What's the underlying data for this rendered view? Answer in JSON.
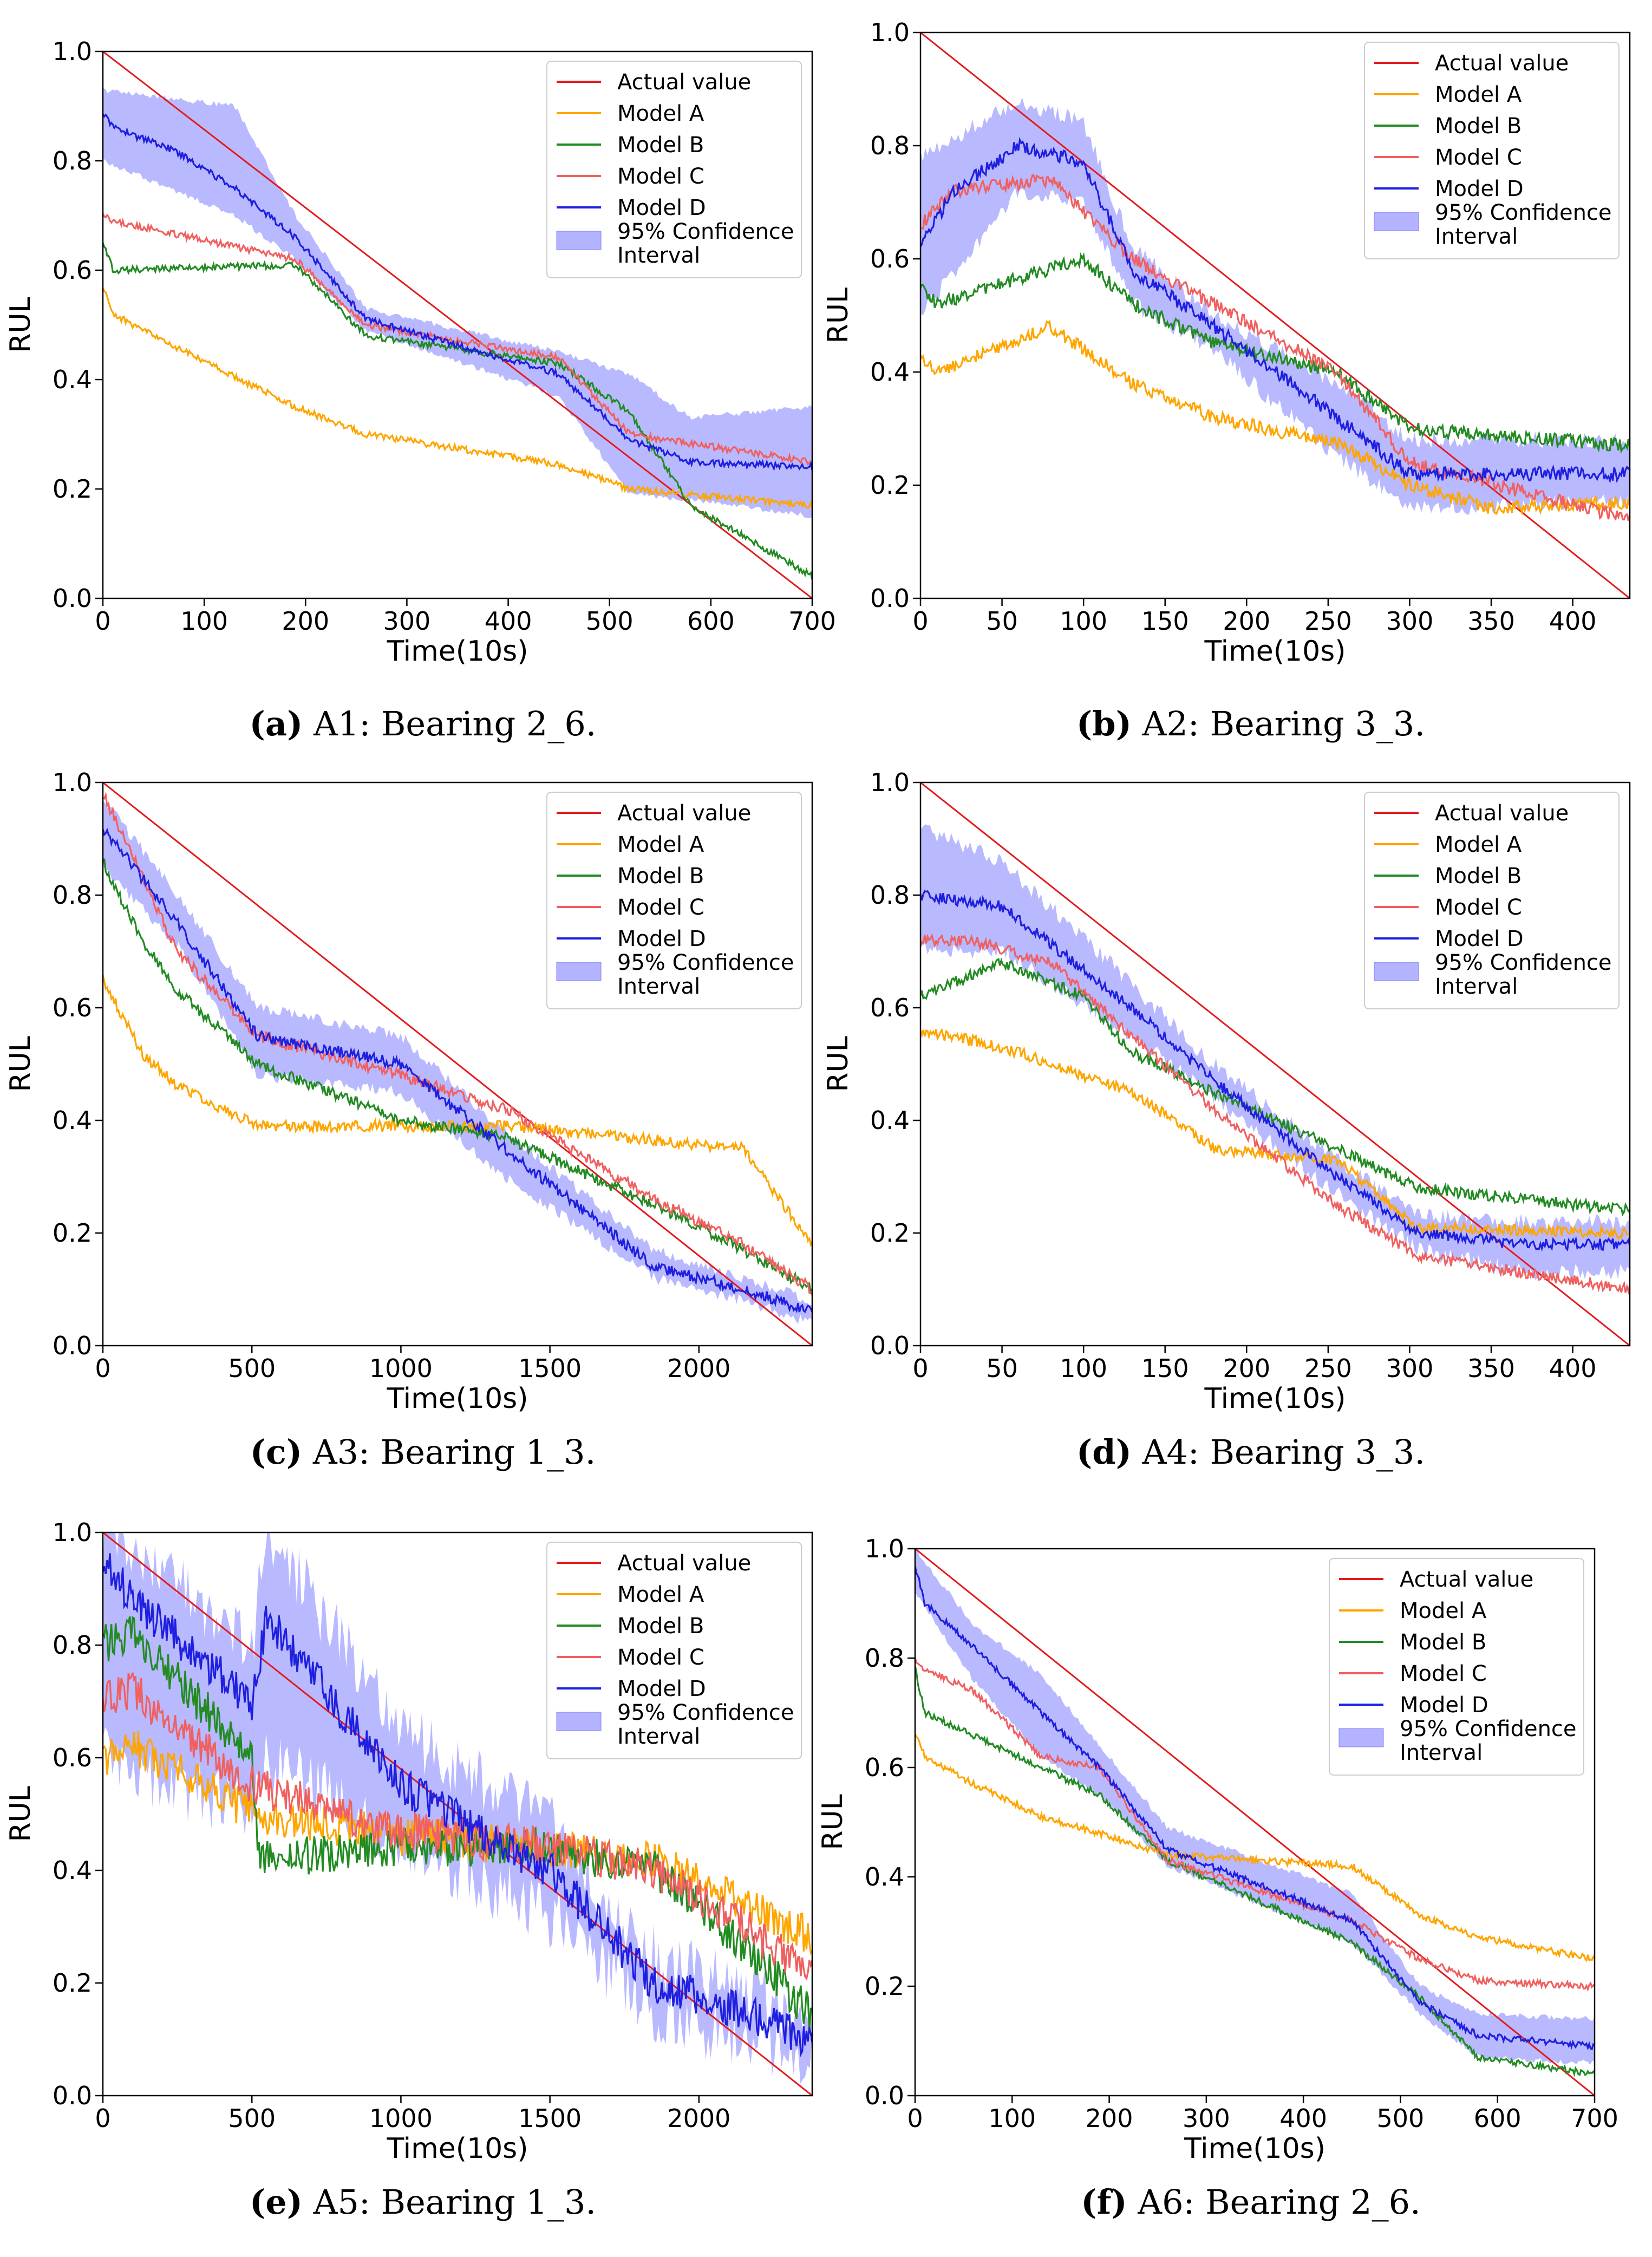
{
  "figure": {
    "legend": [
      "Actual value",
      "Model A",
      "Model B",
      "Model C",
      "Model D",
      "95% Confidence Interval"
    ],
    "legend_ci_lines": [
      "95% Confidence",
      "Interval"
    ],
    "colors": {
      "actual": "#e31a1c",
      "modelA": "#ffa500",
      "modelB": "#228b22",
      "modelC": "#f06060",
      "modelD": "#1f1fe0",
      "ci": "#8080ff"
    }
  },
  "chart_data": [
    {
      "id": "a",
      "type": "line",
      "title": "",
      "caption_letter": "(a)",
      "caption_text": " A1: Bearing 2_6.",
      "xlabel": "Time(10s)",
      "ylabel": "RUL",
      "xlim": [
        0,
        700
      ],
      "ylim": [
        0,
        1
      ],
      "xticks": [
        0,
        100,
        200,
        300,
        400,
        500,
        600,
        700
      ],
      "yticks": [
        "0.0",
        "0.2",
        "0.4",
        "0.6",
        "0.8",
        "1.0"
      ],
      "legend_loc": "upper right",
      "noise": 0.006,
      "ci_noise": 0.01,
      "series": [
        {
          "name": "Actual value",
          "x": [
            0,
            700
          ],
          "y": [
            1.0,
            0.0
          ]
        },
        {
          "name": "Model A",
          "x": [
            0,
            10,
            60,
            190,
            260,
            450,
            520,
            700
          ],
          "y": [
            0.57,
            0.52,
            0.47,
            0.35,
            0.3,
            0.245,
            0.2,
            0.17
          ]
        },
        {
          "name": "Model B",
          "x": [
            0,
            10,
            190,
            260,
            450,
            520,
            580,
            700
          ],
          "y": [
            0.65,
            0.6,
            0.61,
            0.48,
            0.43,
            0.34,
            0.17,
            0.04
          ]
        },
        {
          "name": "Model C",
          "x": [
            0,
            10,
            190,
            260,
            450,
            520,
            700
          ],
          "y": [
            0.7,
            0.69,
            0.62,
            0.5,
            0.44,
            0.3,
            0.25
          ]
        },
        {
          "name": "Model D",
          "x": [
            0,
            10,
            70,
            130,
            190,
            260,
            450,
            520,
            580,
            700
          ],
          "y": [
            0.89,
            0.86,
            0.82,
            0.75,
            0.66,
            0.51,
            0.41,
            0.29,
            0.25,
            0.24
          ]
        }
      ],
      "ci": {
        "x": [
          0,
          130,
          190,
          260,
          450,
          520,
          580,
          700
        ],
        "lower": [
          0.8,
          0.7,
          0.62,
          0.49,
          0.37,
          0.19,
          0.18,
          0.15
        ],
        "upper": [
          0.93,
          0.9,
          0.7,
          0.53,
          0.45,
          0.41,
          0.33,
          0.35
        ]
      }
    },
    {
      "id": "b",
      "type": "line",
      "title": "",
      "caption_letter": "(b)",
      "caption_text": " A2: Bearing 3_3.",
      "xlabel": "Time(10s)",
      "ylabel": "RUL",
      "xlim": [
        0,
        435
      ],
      "ylim": [
        0,
        1
      ],
      "xticks": [
        0,
        50,
        100,
        150,
        200,
        250,
        300,
        350,
        400
      ],
      "yticks": [
        "0.0",
        "0.2",
        "0.4",
        "0.6",
        "0.8",
        "1.0"
      ],
      "legend_loc": "upper right",
      "noise": 0.012,
      "ci_noise": 0.03,
      "series": [
        {
          "name": "Actual value",
          "x": [
            0,
            435
          ],
          "y": [
            1.0,
            0.0
          ]
        },
        {
          "name": "Model A",
          "x": [
            0,
            10,
            80,
            130,
            180,
            260,
            300,
            350,
            435
          ],
          "y": [
            0.43,
            0.4,
            0.48,
            0.38,
            0.32,
            0.27,
            0.2,
            0.16,
            0.17
          ]
        },
        {
          "name": "Model B",
          "x": [
            0,
            10,
            100,
            130,
            180,
            255,
            300,
            435
          ],
          "y": [
            0.55,
            0.52,
            0.6,
            0.52,
            0.45,
            0.4,
            0.3,
            0.27
          ]
        },
        {
          "name": "Model C",
          "x": [
            0,
            20,
            80,
            130,
            180,
            255,
            300,
            435
          ],
          "y": [
            0.66,
            0.72,
            0.74,
            0.6,
            0.52,
            0.4,
            0.24,
            0.14
          ]
        },
        {
          "name": "Model D",
          "x": [
            0,
            20,
            60,
            100,
            130,
            180,
            255,
            300,
            435
          ],
          "y": [
            0.62,
            0.72,
            0.8,
            0.77,
            0.58,
            0.48,
            0.32,
            0.22,
            0.22
          ]
        }
      ],
      "ci": {
        "x": [
          0,
          60,
          100,
          130,
          180,
          255,
          300,
          435
        ],
        "lower": [
          0.5,
          0.72,
          0.7,
          0.52,
          0.44,
          0.25,
          0.16,
          0.17
        ],
        "upper": [
          0.78,
          0.88,
          0.84,
          0.62,
          0.5,
          0.38,
          0.28,
          0.28
        ]
      }
    },
    {
      "id": "c",
      "type": "line",
      "title": "",
      "caption_letter": "(c)",
      "caption_text": " A3: Bearing 1_3.",
      "xlabel": "Time(10s)",
      "ylabel": "RUL",
      "xlim": [
        0,
        2380
      ],
      "ylim": [
        0,
        1
      ],
      "xticks": [
        0,
        500,
        1000,
        1500,
        2000
      ],
      "yticks": [
        "0.0",
        "0.2",
        "0.4",
        "0.6",
        "0.8",
        "1.0"
      ],
      "legend_loc": "upper right",
      "noise": 0.01,
      "ci_noise": 0.02,
      "series": [
        {
          "name": "Actual value",
          "x": [
            0,
            2380
          ],
          "y": [
            1.0,
            0.0
          ]
        },
        {
          "name": "Model A",
          "x": [
            0,
            130,
            250,
            520,
            1000,
            1350,
            2150,
            2380
          ],
          "y": [
            0.65,
            0.52,
            0.46,
            0.39,
            0.39,
            0.39,
            0.35,
            0.18
          ]
        },
        {
          "name": "Model B",
          "x": [
            0,
            130,
            250,
            520,
            1000,
            1350,
            1850,
            2150,
            2380
          ],
          "y": [
            0.86,
            0.72,
            0.63,
            0.5,
            0.4,
            0.37,
            0.25,
            0.17,
            0.1
          ]
        },
        {
          "name": "Model C",
          "x": [
            0,
            250,
            520,
            1000,
            1350,
            1850,
            2150,
            2380
          ],
          "y": [
            0.98,
            0.7,
            0.55,
            0.48,
            0.42,
            0.26,
            0.18,
            0.1
          ]
        },
        {
          "name": "Model D",
          "x": [
            0,
            250,
            520,
            1000,
            1350,
            1850,
            2150,
            2380
          ],
          "y": [
            0.92,
            0.75,
            0.55,
            0.5,
            0.35,
            0.14,
            0.1,
            0.06
          ]
        }
      ],
      "ci": {
        "x": [
          0,
          250,
          520,
          1000,
          1350,
          1850,
          2150,
          2380
        ],
        "lower": [
          0.85,
          0.71,
          0.48,
          0.45,
          0.3,
          0.12,
          0.08,
          0.04
        ],
        "upper": [
          0.97,
          0.8,
          0.6,
          0.55,
          0.38,
          0.17,
          0.12,
          0.08
        ]
      }
    },
    {
      "id": "d",
      "type": "line",
      "title": "",
      "caption_letter": "(d)",
      "caption_text": " A4: Bearing 3_3.",
      "xlabel": "Time(10s)",
      "ylabel": "RUL",
      "xlim": [
        0,
        435
      ],
      "ylim": [
        0,
        1
      ],
      "xticks": [
        0,
        50,
        100,
        150,
        200,
        250,
        300,
        350,
        400
      ],
      "yticks": [
        "0.0",
        "0.2",
        "0.4",
        "0.6",
        "0.8",
        "1.0"
      ],
      "legend_loc": "upper right",
      "noise": 0.01,
      "ci_noise": 0.03,
      "series": [
        {
          "name": "Actual value",
          "x": [
            0,
            435
          ],
          "y": [
            1.0,
            0.0
          ]
        },
        {
          "name": "Model A",
          "x": [
            0,
            50,
            100,
            130,
            180,
            255,
            305,
            435
          ],
          "y": [
            0.56,
            0.53,
            0.48,
            0.45,
            0.35,
            0.33,
            0.21,
            0.2
          ]
        },
        {
          "name": "Model B",
          "x": [
            0,
            50,
            100,
            130,
            180,
            255,
            305,
            435
          ],
          "y": [
            0.62,
            0.68,
            0.62,
            0.52,
            0.45,
            0.35,
            0.28,
            0.24
          ]
        },
        {
          "name": "Model C",
          "x": [
            0,
            30,
            80,
            130,
            180,
            255,
            305,
            435
          ],
          "y": [
            0.72,
            0.72,
            0.68,
            0.55,
            0.42,
            0.25,
            0.16,
            0.1
          ]
        },
        {
          "name": "Model D",
          "x": [
            0,
            50,
            130,
            180,
            255,
            305,
            370,
            435
          ],
          "y": [
            0.8,
            0.78,
            0.6,
            0.47,
            0.3,
            0.2,
            0.18,
            0.18
          ]
        }
      ],
      "ci": {
        "x": [
          0,
          50,
          130,
          180,
          255,
          305,
          370,
          435
        ],
        "lower": [
          0.7,
          0.7,
          0.55,
          0.44,
          0.27,
          0.17,
          0.13,
          0.13
        ],
        "upper": [
          0.92,
          0.86,
          0.64,
          0.5,
          0.33,
          0.23,
          0.22,
          0.22
        ]
      }
    },
    {
      "id": "e",
      "type": "line",
      "title": "",
      "caption_letter": "(e)",
      "caption_text": " A5: Bearing 1_3.",
      "xlabel": "Time(10s)",
      "ylabel": "RUL",
      "xlim": [
        0,
        2380
      ],
      "ylim": [
        0,
        1
      ],
      "xticks": [
        0,
        500,
        1000,
        1500,
        2000
      ],
      "yticks": [
        "0.0",
        "0.2",
        "0.4",
        "0.6",
        "0.8",
        "1.0"
      ],
      "legend_loc": "upper right",
      "noise": 0.035,
      "ci_noise": 0.12,
      "series": [
        {
          "name": "Actual value",
          "x": [
            0,
            2380
          ],
          "y": [
            1.0,
            0.0
          ]
        },
        {
          "name": "Model A",
          "x": [
            0,
            100,
            500,
            1000,
            1500,
            1850,
            2380
          ],
          "y": [
            0.6,
            0.62,
            0.5,
            0.46,
            0.44,
            0.42,
            0.28
          ]
        },
        {
          "name": "Model B",
          "x": [
            0,
            100,
            500,
            520,
            1000,
            1500,
            1850,
            2150,
            2380
          ],
          "y": [
            0.8,
            0.82,
            0.6,
            0.42,
            0.44,
            0.44,
            0.4,
            0.27,
            0.14
          ]
        },
        {
          "name": "Model C",
          "x": [
            0,
            100,
            500,
            1000,
            1500,
            1850,
            2150,
            2380
          ],
          "y": [
            0.7,
            0.72,
            0.55,
            0.47,
            0.44,
            0.4,
            0.3,
            0.22
          ]
        },
        {
          "name": "Model D",
          "x": [
            0,
            100,
            500,
            550,
            1000,
            1500,
            1850,
            2150,
            2380
          ],
          "y": [
            0.95,
            0.88,
            0.7,
            0.85,
            0.55,
            0.4,
            0.2,
            0.15,
            0.1
          ]
        }
      ],
      "ci": {
        "x": [
          0,
          500,
          550,
          1000,
          1500,
          1850,
          2150,
          2380
        ],
        "lower": [
          0.6,
          0.5,
          0.6,
          0.45,
          0.32,
          0.15,
          0.1,
          0.06
        ],
        "upper": [
          1.0,
          0.8,
          1.0,
          0.65,
          0.48,
          0.25,
          0.18,
          0.14
        ]
      }
    },
    {
      "id": "f",
      "type": "line",
      "title": "",
      "caption_letter": "(f)",
      "caption_text": " A6: Bearing 2_6.",
      "xlabel": "Time(10s)",
      "ylabel": "RUL",
      "xlim": [
        0,
        700
      ],
      "ylim": [
        0,
        1
      ],
      "xticks": [
        0,
        100,
        200,
        300,
        400,
        500,
        600,
        700
      ],
      "yticks": [
        "0.0",
        "0.2",
        "0.4",
        "0.6",
        "0.8",
        "1.0"
      ],
      "legend_loc": "upper right",
      "noise": 0.006,
      "ci_noise": 0.01,
      "series": [
        {
          "name": "Actual value",
          "x": [
            0,
            700
          ],
          "y": [
            1.0,
            0.0
          ]
        },
        {
          "name": "Model A",
          "x": [
            0,
            10,
            60,
            130,
            190,
            260,
            450,
            520,
            580,
            700
          ],
          "y": [
            0.66,
            0.62,
            0.57,
            0.51,
            0.48,
            0.44,
            0.42,
            0.33,
            0.29,
            0.25
          ]
        },
        {
          "name": "Model B",
          "x": [
            0,
            10,
            130,
            190,
            260,
            450,
            520,
            580,
            700
          ],
          "y": [
            0.78,
            0.7,
            0.6,
            0.55,
            0.43,
            0.28,
            0.18,
            0.07,
            0.04
          ]
        },
        {
          "name": "Model C",
          "x": [
            0,
            10,
            60,
            130,
            190,
            260,
            450,
            520,
            580,
            700
          ],
          "y": [
            0.8,
            0.78,
            0.74,
            0.62,
            0.6,
            0.43,
            0.32,
            0.25,
            0.21,
            0.2
          ]
        },
        {
          "name": "Model D",
          "x": [
            0,
            10,
            60,
            130,
            190,
            260,
            450,
            520,
            580,
            700
          ],
          "y": [
            0.97,
            0.9,
            0.82,
            0.7,
            0.6,
            0.45,
            0.32,
            0.17,
            0.11,
            0.09
          ]
        }
      ],
      "ci": {
        "x": [
          0,
          60,
          130,
          190,
          260,
          450,
          520,
          580,
          700
        ],
        "lower": [
          0.92,
          0.76,
          0.62,
          0.55,
          0.42,
          0.28,
          0.15,
          0.07,
          0.06
        ],
        "upper": [
          1.0,
          0.86,
          0.77,
          0.64,
          0.49,
          0.37,
          0.2,
          0.15,
          0.14
        ]
      }
    }
  ]
}
